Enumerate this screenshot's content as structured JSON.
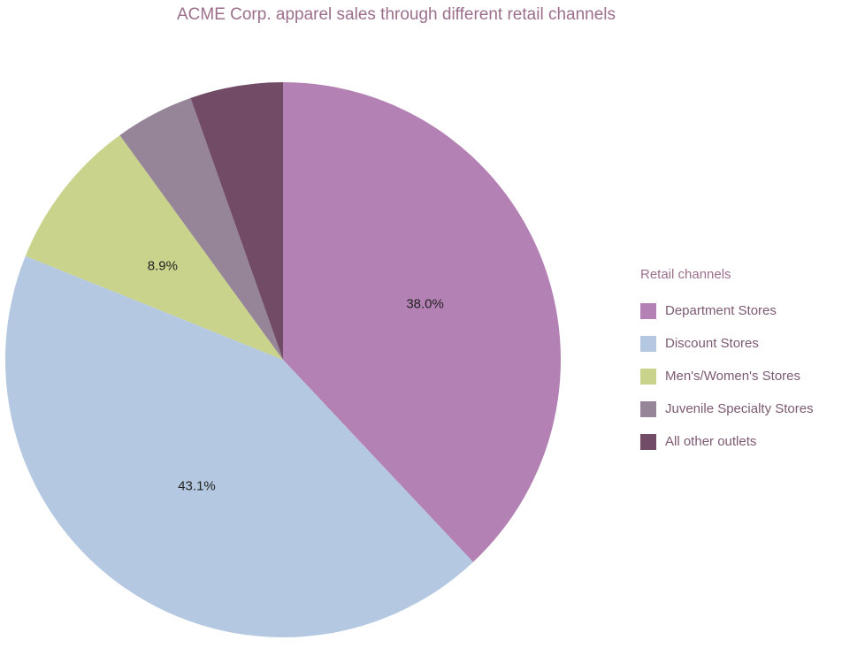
{
  "chart_data": {
    "type": "pie",
    "title": "ACME Corp. apparel sales through different retail channels",
    "legend_title": "Retail channels",
    "legend_position": "right",
    "slices": [
      {
        "label": "Department Stores",
        "value": 38.0,
        "display": "38.0%",
        "color": "#b381b3"
      },
      {
        "label": "Discount Stores",
        "value": 43.1,
        "display": "43.1%",
        "color": "#b4c9e1"
      },
      {
        "label": "Men's/Women's Stores",
        "value": 8.9,
        "display": "8.9%",
        "color": "#c9d38b"
      },
      {
        "label": "Juvenile Specialty Stores",
        "value": 4.6,
        "display": "",
        "color": "#968598"
      },
      {
        "label": "All other outlets",
        "value": 5.4,
        "display": "",
        "color": "#724c66"
      }
    ]
  }
}
